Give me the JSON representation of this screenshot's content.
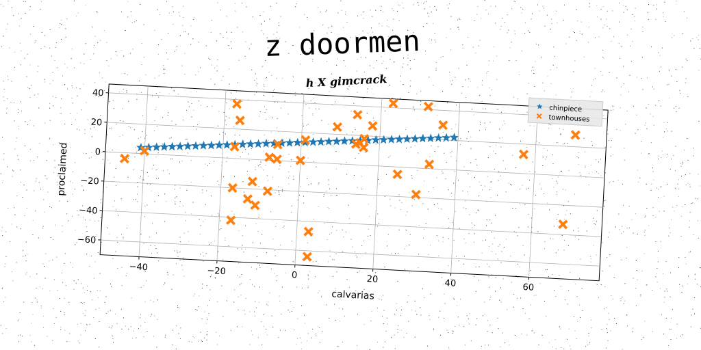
{
  "chart_data": {
    "type": "scatter",
    "title": "z doormen",
    "subtitle": "h X gimcrack",
    "xlabel": "calvarias",
    "ylabel": "proclaimed",
    "xlim": [
      -50,
      78
    ],
    "ylim": [
      -70,
      46
    ],
    "xticks": [
      -40,
      -20,
      0,
      20,
      40,
      60
    ],
    "yticks": [
      -60,
      -40,
      -20,
      0,
      20,
      40
    ],
    "xtick_labels": [
      "−40",
      "−20",
      "0",
      "20",
      "40",
      "60"
    ],
    "ytick_labels": [
      "−60",
      "−40",
      "−20",
      "0",
      "20",
      "40"
    ],
    "grid": true,
    "legend_position": "top-right",
    "series": [
      {
        "name": "chinpiece",
        "marker": "star",
        "color": "#1f77b4",
        "x": [
          -41,
          -39,
          -37,
          -35,
          -33,
          -31,
          -29,
          -27,
          -25,
          -23,
          -21,
          -19,
          -17,
          -15,
          -13,
          -11,
          -9,
          -7,
          -5,
          -3,
          -1,
          1,
          3,
          5,
          7,
          9,
          11,
          13,
          15,
          17,
          19,
          21,
          23,
          25,
          27,
          29,
          31,
          33,
          35,
          37,
          39
        ],
        "y": [
          4.0,
          4.4,
          4.9,
          5.3,
          5.8,
          6.2,
          6.7,
          7.1,
          7.6,
          8.0,
          8.5,
          8.9,
          9.4,
          9.8,
          10.3,
          10.7,
          11.2,
          11.6,
          12.1,
          12.5,
          13.0,
          13.4,
          13.9,
          14.3,
          14.8,
          15.2,
          15.7,
          16.1,
          16.6,
          17.0,
          17.5,
          17.9,
          18.4,
          18.8,
          19.3,
          19.7,
          20.2,
          20.6,
          21.1,
          21.5,
          22.0
        ]
      },
      {
        "name": "townhouses",
        "marker": "x",
        "color": "#ff7f0e",
        "x": [
          -45,
          -40,
          -17,
          -16,
          -17,
          -12,
          -17,
          -17,
          -13,
          -11,
          -8,
          -8,
          -6,
          -6,
          0,
          1,
          3,
          3,
          9,
          14,
          14,
          15,
          16,
          16,
          18,
          23,
          25,
          30,
          32,
          33,
          36,
          57,
          68,
          70
        ],
        "y": [
          -4,
          2,
          37,
          26,
          8,
          -15,
          -42,
          -20,
          -27,
          -31,
          -21,
          2,
          11,
          1,
          1,
          15,
          -47,
          -64,
          25,
          34,
          14,
          15,
          12,
          18,
          27,
          43,
          -5,
          -18,
          42,
          3,
          30,
          13,
          -33,
          28
        ]
      }
    ]
  }
}
